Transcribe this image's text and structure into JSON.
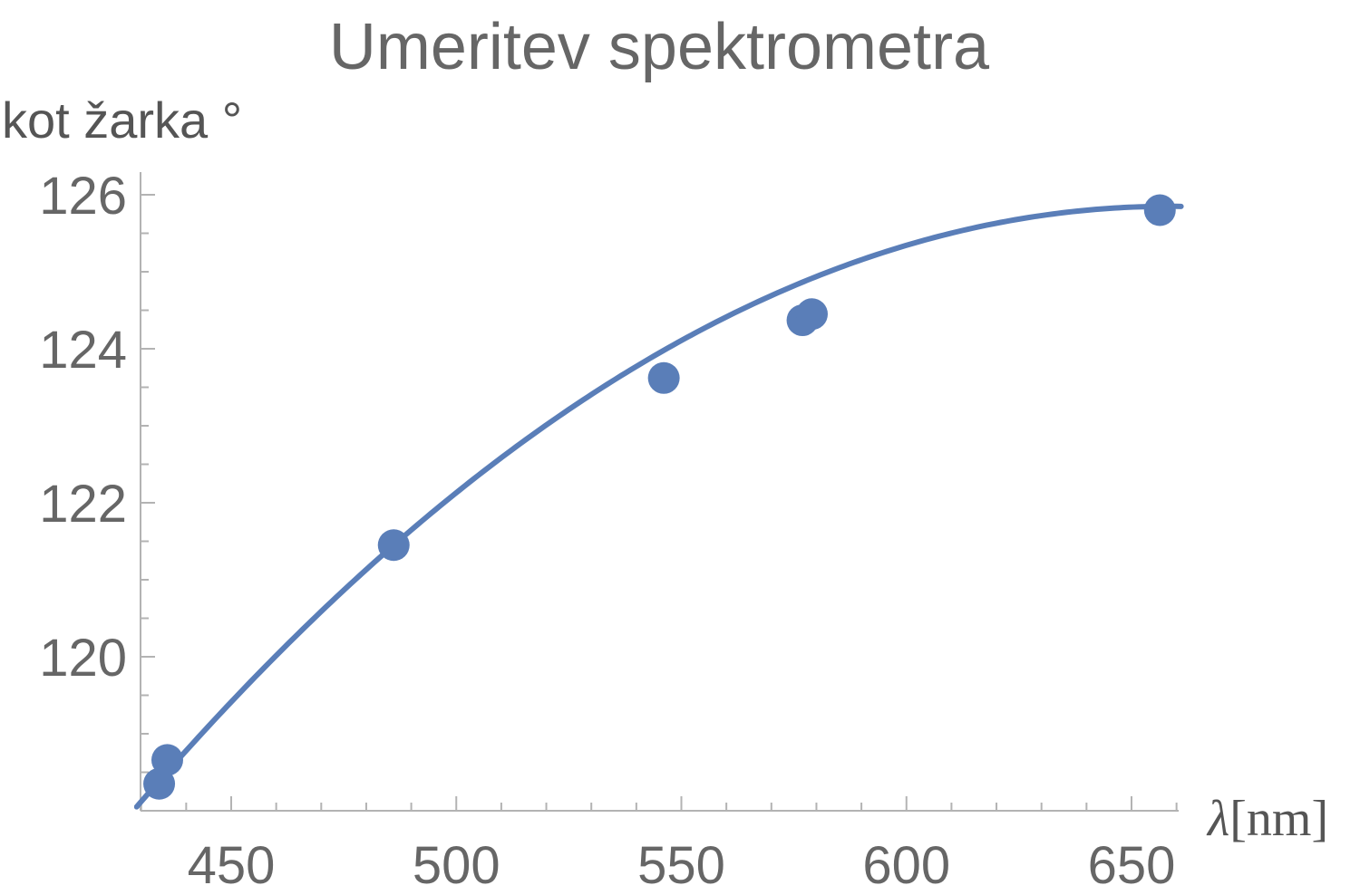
{
  "chart_data": {
    "type": "scatter",
    "title": "Umeritev spektrometra",
    "xlabel_symbol": "λ",
    "xlabel_unit": "[nm]",
    "ylabel": "kot žarka °",
    "xlim": [
      430,
      660
    ],
    "ylim": [
      118.0,
      126.2
    ],
    "x_ticks": [
      450,
      500,
      550,
      600,
      650
    ],
    "y_ticks": [
      120,
      122,
      124,
      126
    ],
    "x_tick_labels": [
      "450",
      "500",
      "550",
      "600",
      "650"
    ],
    "y_tick_labels": [
      "120",
      "122",
      "124",
      "126"
    ],
    "x_minor_step": 10,
    "y_minor_step": 0.5,
    "grid": false,
    "color": "#5a7eb8",
    "series": [
      {
        "type": "scatter",
        "points": [
          {
            "x": 434.0,
            "y": 118.35
          },
          {
            "x": 435.8,
            "y": 118.66
          },
          {
            "x": 486.1,
            "y": 121.45
          },
          {
            "x": 546.1,
            "y": 123.62
          },
          {
            "x": 576.9,
            "y": 124.37
          },
          {
            "x": 579.0,
            "y": 124.45
          },
          {
            "x": 656.3,
            "y": 125.8
          }
        ]
      },
      {
        "type": "line",
        "fit": "quadratic",
        "x_range": [
          429,
          661
        ],
        "coefficients": {
          "x0": 658.48,
          "a": -0.0001481,
          "b": 0.0,
          "c": 125.85
        }
      }
    ]
  }
}
